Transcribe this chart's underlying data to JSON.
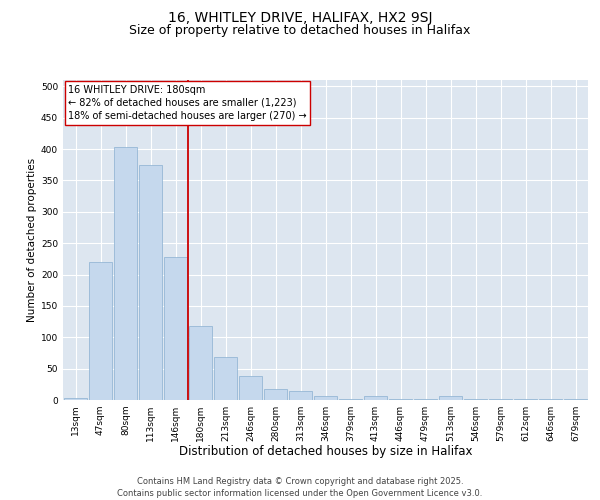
{
  "title": "16, WHITLEY DRIVE, HALIFAX, HX2 9SJ",
  "subtitle": "Size of property relative to detached houses in Halifax",
  "xlabel": "Distribution of detached houses by size in Halifax",
  "ylabel": "Number of detached properties",
  "categories": [
    "13sqm",
    "47sqm",
    "80sqm",
    "113sqm",
    "146sqm",
    "180sqm",
    "213sqm",
    "246sqm",
    "280sqm",
    "313sqm",
    "346sqm",
    "379sqm",
    "413sqm",
    "446sqm",
    "479sqm",
    "513sqm",
    "546sqm",
    "579sqm",
    "612sqm",
    "646sqm",
    "679sqm"
  ],
  "values": [
    3,
    220,
    403,
    375,
    228,
    118,
    68,
    38,
    17,
    15,
    6,
    1,
    6,
    1,
    1,
    7,
    1,
    1,
    1,
    1,
    2
  ],
  "bar_color": "#c5d8ed",
  "bar_edge_color": "#8ab0d0",
  "vline_index": 4.5,
  "vline_color": "#cc0000",
  "annotation_text": "16 WHITLEY DRIVE: 180sqm\n← 82% of detached houses are smaller (1,223)\n18% of semi-detached houses are larger (270) →",
  "annotation_box_color": "#cc0000",
  "ylim": [
    0,
    510
  ],
  "yticks": [
    0,
    50,
    100,
    150,
    200,
    250,
    300,
    350,
    400,
    450,
    500
  ],
  "background_color": "#dde6f0",
  "footer": "Contains HM Land Registry data © Crown copyright and database right 2025.\nContains public sector information licensed under the Open Government Licence v3.0.",
  "title_fontsize": 10,
  "subtitle_fontsize": 9,
  "xlabel_fontsize": 8.5,
  "ylabel_fontsize": 7.5,
  "tick_fontsize": 6.5,
  "annotation_fontsize": 7,
  "footer_fontsize": 6
}
